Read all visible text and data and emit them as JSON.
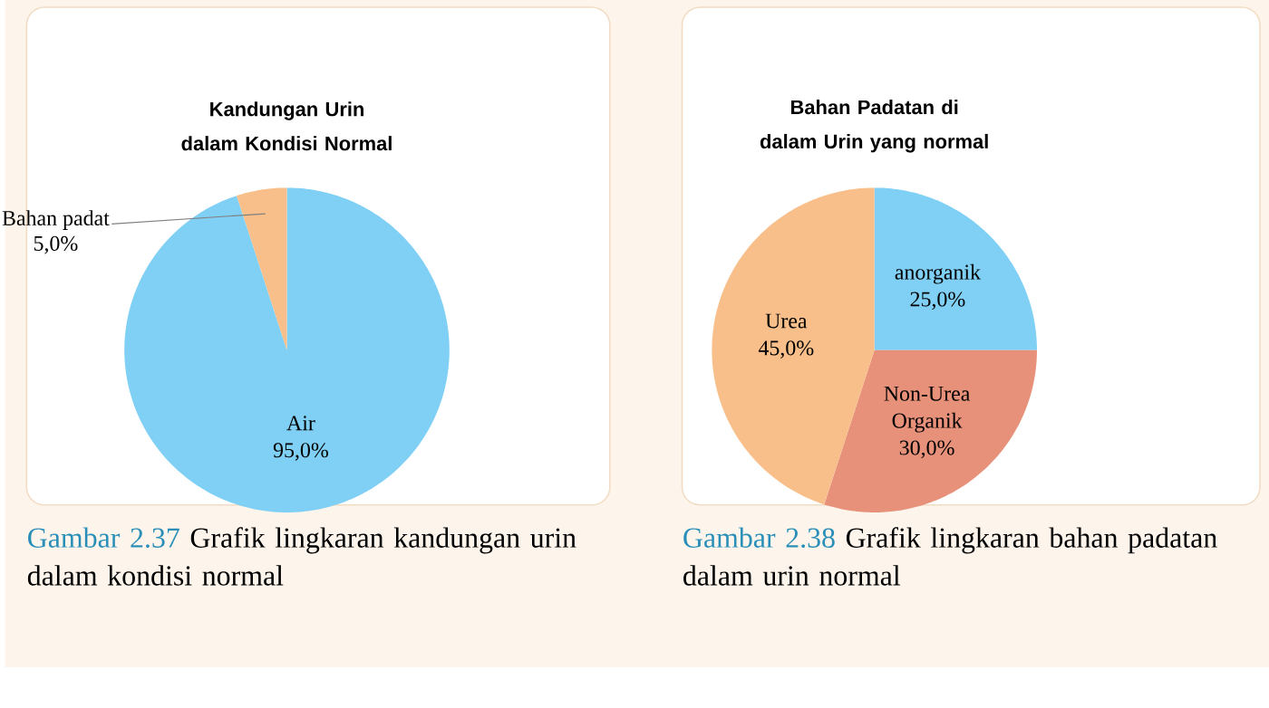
{
  "chart_data": [
    {
      "type": "pie",
      "title": "Kandungan Urin dalam Kondisi Normal",
      "categories": [
        "Air",
        "Bahan padat"
      ],
      "values": [
        95,
        5
      ],
      "colors": [
        "#80d0f5",
        "#f8bf8a"
      ],
      "value_labels": [
        "95,0%",
        "5,0%"
      ],
      "annotations": [
        "Gambar 2.37",
        "Grafik lingkaran kandungan urin dalam kondisi normal"
      ]
    },
    {
      "type": "pie",
      "title": "Bahan Padatan di dalam Urin yang normal",
      "categories": [
        "anorganik",
        "Non-Urea Organik",
        "Urea"
      ],
      "values": [
        25,
        30,
        45
      ],
      "colors": [
        "#80d0f5",
        "#e8917a",
        "#f8bf8a"
      ],
      "value_labels": [
        "25,0%",
        "30,0%",
        "45,0%"
      ],
      "annotations": [
        "Gambar 2.38",
        "Grafik lingkaran bahan padatan dalam urin normal"
      ]
    }
  ]
}
